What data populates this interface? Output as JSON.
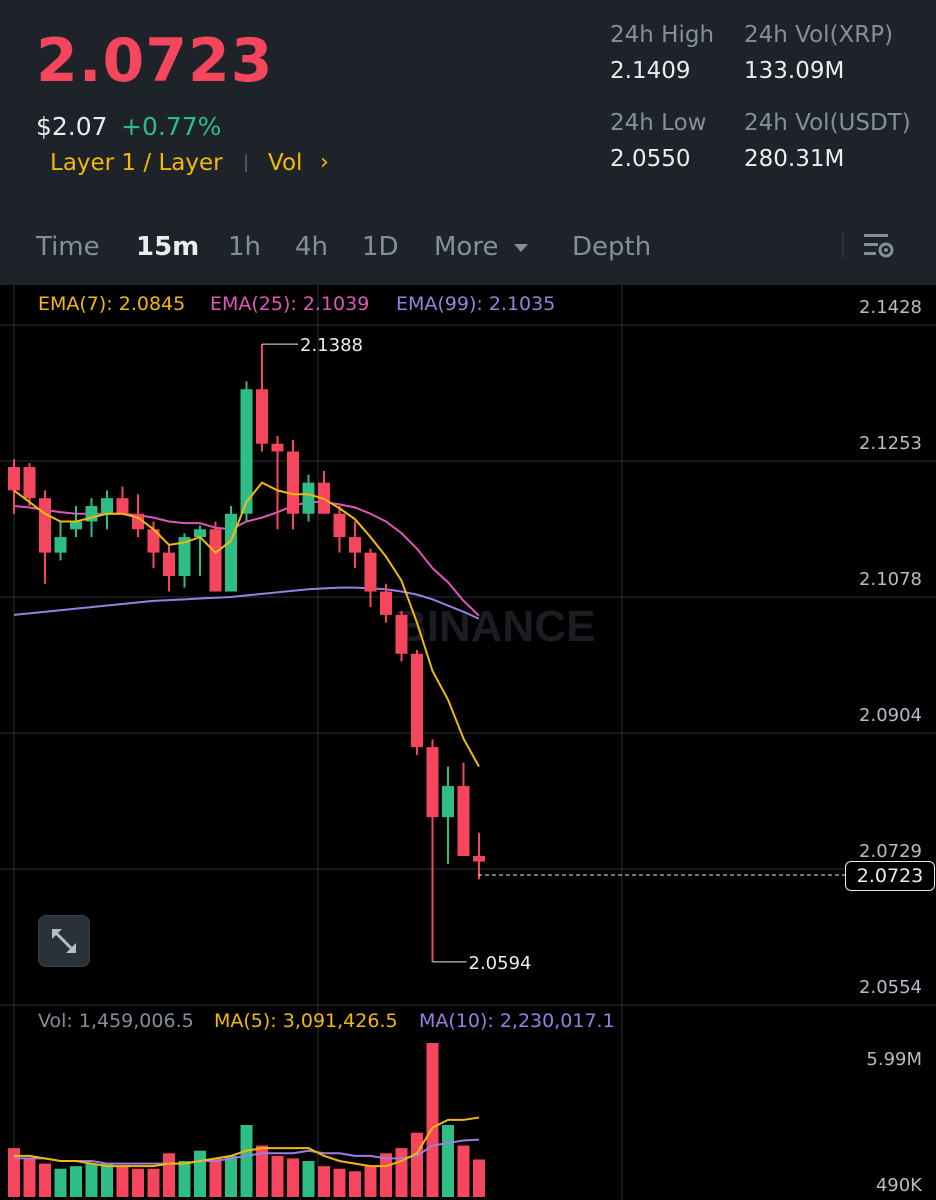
{
  "header": {
    "last_price": "2.0723",
    "fiat_price": "$2.07",
    "change_pct": "+0.77%",
    "tag_category": "Layer 1 / Layer",
    "tag_vol": "Vol",
    "tag_vol_arrow": "›",
    "stats": {
      "high_label": "24h High",
      "high_value": "2.1409",
      "low_label": "24h Low",
      "low_value": "2.0550",
      "vol_base_label": "24h Vol(XRP)",
      "vol_base_value": "133.09M",
      "vol_quote_label": "24h Vol(USDT)",
      "vol_quote_value": "280.31M"
    }
  },
  "tabs": {
    "time": "Time",
    "m15": "15m",
    "h1": "1h",
    "h4": "4h",
    "d1": "1D",
    "more": "More",
    "depth": "Depth",
    "active": "15m"
  },
  "indicators": {
    "ema7": "EMA(7): 2.0845",
    "ema25": "EMA(25): 2.1039",
    "ema99": "EMA(99): 2.1035",
    "vol": "Vol: 1,459,006.5",
    "ma5": "MA(5): 3,091,426.5",
    "ma10": "MA(10): 2,230,017.1"
  },
  "colors": {
    "up": "#2ebd85",
    "down": "#f6465d",
    "ema7": "#f0b90b",
    "ema25": "#e056b8",
    "ema99": "#9b7ee0",
    "ma5": "#f0b90b",
    "ma10": "#9b7ee0"
  },
  "watermark": "BINANCE",
  "chart_data": {
    "type": "candlestick",
    "interval": "15m",
    "y_ticks": [
      "2.1428",
      "2.1253",
      "2.1078",
      "2.0904",
      "2.0729",
      "2.0554"
    ],
    "ylim": [
      2.0554,
      2.1428
    ],
    "high_marker": "2.1388",
    "low_marker": "2.0594",
    "current_price_label": "2.0723",
    "volume_ticks": [
      "5.99M",
      "490K"
    ],
    "volume_range": [
      490000,
      5990000
    ],
    "candles": [
      {
        "o": 2.123,
        "h": 2.124,
        "l": 2.117,
        "c": 2.12
      },
      {
        "o": 2.123,
        "h": 2.1235,
        "l": 2.118,
        "c": 2.119
      },
      {
        "o": 2.119,
        "h": 2.12,
        "l": 2.108,
        "c": 2.112
      },
      {
        "o": 2.112,
        "h": 2.116,
        "l": 2.111,
        "c": 2.114
      },
      {
        "o": 2.115,
        "h": 2.118,
        "l": 2.114,
        "c": 2.116
      },
      {
        "o": 2.116,
        "h": 2.119,
        "l": 2.114,
        "c": 2.118
      },
      {
        "o": 2.117,
        "h": 2.12,
        "l": 2.115,
        "c": 2.119
      },
      {
        "o": 2.119,
        "h": 2.1205,
        "l": 2.117,
        "c": 2.117
      },
      {
        "o": 2.117,
        "h": 2.1195,
        "l": 2.114,
        "c": 2.115
      },
      {
        "o": 2.115,
        "h": 2.116,
        "l": 2.11,
        "c": 2.112
      },
      {
        "o": 2.112,
        "h": 2.113,
        "l": 2.107,
        "c": 2.109
      },
      {
        "o": 2.109,
        "h": 2.1145,
        "l": 2.1075,
        "c": 2.114
      },
      {
        "o": 2.114,
        "h": 2.1155,
        "l": 2.109,
        "c": 2.115
      },
      {
        "o": 2.115,
        "h": 2.116,
        "l": 2.107,
        "c": 2.107
      },
      {
        "o": 2.107,
        "h": 2.118,
        "l": 2.107,
        "c": 2.117
      },
      {
        "o": 2.117,
        "h": 2.134,
        "l": 2.116,
        "c": 2.133
      },
      {
        "o": 2.133,
        "h": 2.1388,
        "l": 2.125,
        "c": 2.126
      },
      {
        "o": 2.126,
        "h": 2.127,
        "l": 2.115,
        "c": 2.125
      },
      {
        "o": 2.125,
        "h": 2.1265,
        "l": 2.115,
        "c": 2.117
      },
      {
        "o": 2.117,
        "h": 2.122,
        "l": 2.116,
        "c": 2.121
      },
      {
        "o": 2.121,
        "h": 2.1225,
        "l": 2.117,
        "c": 2.117
      },
      {
        "o": 2.117,
        "h": 2.118,
        "l": 2.112,
        "c": 2.114
      },
      {
        "o": 2.114,
        "h": 2.116,
        "l": 2.11,
        "c": 2.112
      },
      {
        "o": 2.112,
        "h": 2.1125,
        "l": 2.105,
        "c": 2.107
      },
      {
        "o": 2.107,
        "h": 2.108,
        "l": 2.103,
        "c": 2.104
      },
      {
        "o": 2.104,
        "h": 2.1045,
        "l": 2.098,
        "c": 2.099
      },
      {
        "o": 2.099,
        "h": 2.0995,
        "l": 2.086,
        "c": 2.087
      },
      {
        "o": 2.087,
        "h": 2.088,
        "l": 2.0594,
        "c": 2.078
      },
      {
        "o": 2.078,
        "h": 2.0845,
        "l": 2.072,
        "c": 2.082
      },
      {
        "o": 2.082,
        "h": 2.085,
        "l": 2.073,
        "c": 2.073
      },
      {
        "o": 2.073,
        "h": 2.076,
        "l": 2.07,
        "c": 2.0723
      }
    ],
    "volumes": [
      1.9,
      1.5,
      1.3,
      1.1,
      1.2,
      1.3,
      1.3,
      1.2,
      1.1,
      1.1,
      1.7,
      1.4,
      1.8,
      1.5,
      1.6,
      2.8,
      2.0,
      1.6,
      1.5,
      1.4,
      1.2,
      1.1,
      1.0,
      1.2,
      1.7,
      1.9,
      2.5,
      5.99,
      2.8,
      2.0,
      1.46
    ],
    "ema7": [
      2.12,
      2.1185,
      2.117,
      2.116,
      2.116,
      2.1165,
      2.117,
      2.117,
      2.1165,
      2.115,
      2.113,
      2.1133,
      2.114,
      2.112,
      2.1135,
      2.1185,
      2.121,
      2.12,
      2.1195,
      2.1195,
      2.1189,
      2.1177,
      2.1163,
      2.114,
      2.1115,
      2.1084,
      2.103,
      2.0968,
      2.0931,
      2.0881,
      2.0845
    ],
    "ema25": [
      2.118,
      2.1178,
      2.1175,
      2.1172,
      2.117,
      2.117,
      2.117,
      2.117,
      2.1168,
      2.1165,
      2.116,
      2.1158,
      2.1158,
      2.1152,
      2.115,
      2.116,
      2.1165,
      2.1172,
      2.118,
      2.1185,
      2.1185,
      2.1182,
      2.1178,
      2.117,
      2.116,
      2.1145,
      2.1125,
      2.11,
      2.1082,
      2.1058,
      2.1039
    ],
    "ema99": [
      2.104,
      2.1042,
      2.1044,
      2.1046,
      2.1048,
      2.105,
      2.1052,
      2.1054,
      2.1056,
      2.1058,
      2.1059,
      2.106,
      2.1061,
      2.1062,
      2.1063,
      2.1065,
      2.1067,
      2.1069,
      2.1071,
      2.1073,
      2.1074,
      2.1075,
      2.1075,
      2.1074,
      2.1073,
      2.107,
      2.1066,
      2.106,
      2.1052,
      2.1044,
      2.1035
    ],
    "ma5": [
      1.6,
      1.6,
      1.5,
      1.4,
      1.4,
      1.3,
      1.2,
      1.2,
      1.2,
      1.2,
      1.3,
      1.3,
      1.4,
      1.5,
      1.6,
      1.8,
      1.9,
      1.9,
      1.9,
      1.9,
      1.6,
      1.4,
      1.3,
      1.2,
      1.2,
      1.4,
      1.7,
      2.7,
      3.0,
      3.0,
      3.09
    ],
    "ma10": [
      1.5,
      1.5,
      1.5,
      1.4,
      1.4,
      1.4,
      1.3,
      1.3,
      1.3,
      1.3,
      1.3,
      1.3,
      1.4,
      1.4,
      1.5,
      1.6,
      1.7,
      1.7,
      1.7,
      1.8,
      1.7,
      1.7,
      1.6,
      1.6,
      1.5,
      1.5,
      1.6,
      2.0,
      2.1,
      2.2,
      2.23
    ]
  }
}
